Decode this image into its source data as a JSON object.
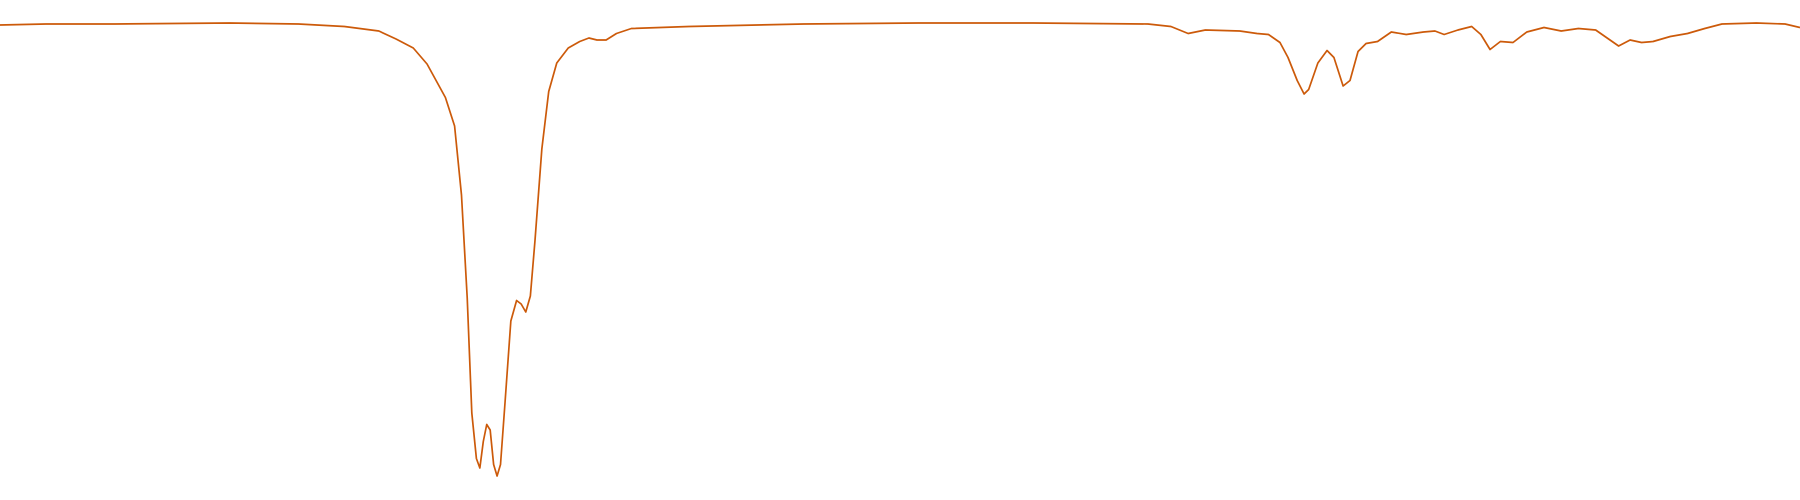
{
  "chart_data": {
    "type": "line",
    "x": [
      0,
      40,
      100,
      200,
      260,
      300,
      330,
      345,
      360,
      372,
      388,
      396,
      402,
      407,
      411,
      415,
      418,
      421,
      424,
      427,
      430,
      433,
      436,
      440,
      445,
      450,
      454,
      458,
      462,
      466,
      472,
      478,
      485,
      495,
      505,
      513,
      520,
      528,
      537,
      550,
      600,
      700,
      800,
      900,
      1000,
      1020,
      1035,
      1050,
      1080,
      1095,
      1105,
      1115,
      1122,
      1130,
      1136,
      1140,
      1148,
      1156,
      1162,
      1170,
      1176,
      1183,
      1190,
      1200,
      1212,
      1225,
      1240,
      1250,
      1258,
      1270,
      1282,
      1290,
      1298,
      1307,
      1318,
      1330,
      1345,
      1360,
      1375,
      1390,
      1400,
      1410,
      1420,
      1430,
      1440,
      1455,
      1470,
      1485,
      1500,
      1530,
      1555,
      1568
    ],
    "series": [
      {
        "color": "#cc5a0a",
        "values": [
          95.0,
          95.2,
          95.2,
          95.4,
          95.2,
          94.7,
          93.8,
          92.2,
          90.4,
          87.2,
          80.5,
          74.8,
          61.0,
          40.4,
          17.4,
          8.3,
          6.4,
          11.7,
          15.1,
          14.0,
          7.1,
          4.8,
          7.1,
          19.7,
          35.8,
          39.9,
          39.2,
          37.6,
          40.8,
          51.8,
          70.2,
          81.7,
          87.4,
          90.4,
          91.7,
          92.4,
          92.0,
          92.0,
          93.3,
          94.3,
          94.7,
          95.2,
          95.4,
          95.4,
          95.2,
          94.7,
          93.3,
          94.0,
          93.8,
          93.3,
          93.1,
          91.5,
          88.5,
          83.9,
          81.2,
          82.1,
          87.4,
          89.9,
          88.5,
          82.8,
          83.9,
          89.7,
          91.3,
          91.7,
          93.6,
          93.1,
          93.6,
          93.8,
          93.1,
          94.0,
          94.7,
          93.1,
          90.1,
          91.7,
          91.5,
          93.6,
          94.5,
          93.8,
          94.3,
          94.0,
          92.4,
          90.8,
          92.0,
          91.5,
          91.7,
          92.7,
          93.3,
          94.3,
          95.2,
          95.4,
          95.2,
          94.5
        ]
      }
    ],
    "xlim": [
      0,
      1568
    ],
    "ylim": [
      0,
      100
    ]
  }
}
